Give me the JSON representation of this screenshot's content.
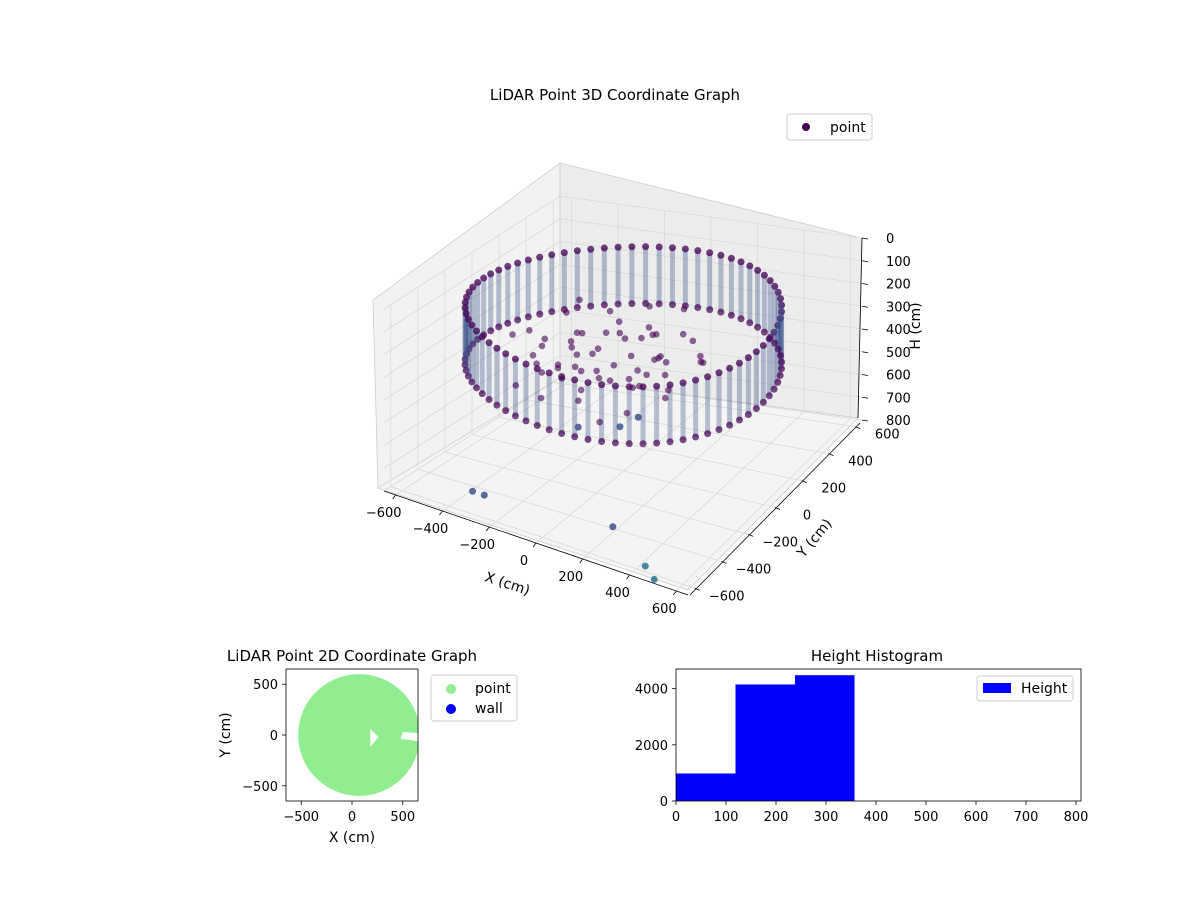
{
  "colors": {
    "point_dark": "#440154",
    "point_mid": "#3b528b",
    "point_teal": "#2c728e",
    "point_2d": "#90ee90",
    "wall": "#0000ff",
    "histogram": "#0000ff",
    "pane": "#f2f2f2",
    "grid": "#d9d9d9"
  },
  "chart_data": [
    {
      "type": "scatter",
      "projection": "3d",
      "title": "LiDAR Point 3D Coordinate Graph",
      "xlabel": "X (cm)",
      "ylabel": "Y (cm)",
      "zlabel": "H (cm)",
      "xlim": [
        -650,
        650
      ],
      "ylim": [
        -650,
        650
      ],
      "zlim": [
        800,
        0
      ],
      "z_inverted": true,
      "xticks": [
        -600,
        -400,
        -200,
        0,
        200,
        400,
        600
      ],
      "yticks": [
        -600,
        -400,
        -200,
        0,
        200,
        400,
        600
      ],
      "zticks": [
        0,
        100,
        200,
        300,
        400,
        500,
        600,
        700,
        800
      ],
      "grid": true,
      "legend": {
        "position": "top-right",
        "entries": [
          "point"
        ]
      },
      "series": [
        {
          "name": "point",
          "description_ring": {
            "radius": 600,
            "height_range": [
              100,
              350
            ]
          },
          "points": [
            {
              "x": 150,
              "y": -150,
              "h": 450
            },
            {
              "x": 100,
              "y": -200,
              "h": 480
            },
            {
              "x": -50,
              "y": -250,
              "h": 500
            },
            {
              "x": -300,
              "y": -600,
              "h": 700
            },
            {
              "x": -250,
              "y": -600,
              "h": 700
            },
            {
              "x": 300,
              "y": -600,
              "h": 650
            },
            {
              "x": 450,
              "y": -620,
              "h": 760
            },
            {
              "x": 500,
              "y": -640,
              "h": 790
            }
          ]
        }
      ]
    },
    {
      "type": "scatter",
      "title": "LiDAR Point 2D Coordinate Graph",
      "xlabel": "X (cm)",
      "ylabel": "Y (cm)",
      "xlim": [
        -650,
        650
      ],
      "ylim": [
        -650,
        650
      ],
      "xticks": [
        -500,
        0,
        500
      ],
      "yticks": [
        -500,
        0,
        500
      ],
      "legend": {
        "position": "outside-right",
        "entries": [
          "point",
          "wall"
        ]
      },
      "series": [
        {
          "name": "point",
          "shape": "filled-disk",
          "radius": 600
        },
        {
          "name": "wall"
        }
      ]
    },
    {
      "type": "bar",
      "title": "Height Histogram",
      "xlim": [
        0,
        810
      ],
      "ylim": [
        0,
        4700
      ],
      "xticks": [
        0,
        100,
        200,
        300,
        400,
        500,
        600,
        700,
        800
      ],
      "yticks": [
        0,
        2000,
        4000
      ],
      "legend": {
        "position": "top-right",
        "entries": [
          "Height"
        ]
      },
      "bins": [
        {
          "start": 0,
          "end": 119,
          "count": 980
        },
        {
          "start": 119,
          "end": 238,
          "count": 4150
        },
        {
          "start": 238,
          "end": 357,
          "count": 4480
        },
        {
          "start": 357,
          "end": 476,
          "count": 0
        },
        {
          "start": 476,
          "end": 595,
          "count": 0
        },
        {
          "start": 595,
          "end": 714,
          "count": 0
        },
        {
          "start": 714,
          "end": 800,
          "count": 0
        }
      ],
      "series": [
        {
          "name": "Height"
        }
      ]
    }
  ]
}
